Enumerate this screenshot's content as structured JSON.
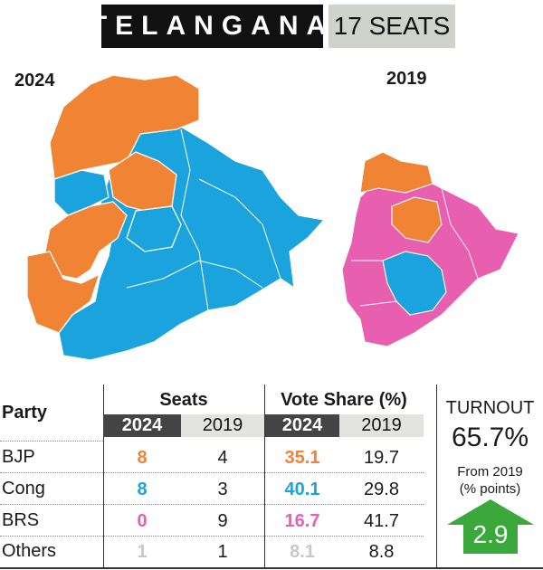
{
  "header": {
    "state": "TELANGANA",
    "seats": "17 SEATS"
  },
  "maps": {
    "left_year": "2024",
    "right_year": "2019"
  },
  "colors": {
    "bjp": "#f08434",
    "cong": "#1ba3dd",
    "brs": "#e95fb0",
    "others": "#c8c8c8",
    "turnout_arrow": "#3aa83a"
  },
  "table": {
    "party_header": "Party",
    "seats_header": "Seats",
    "vote_header": "Vote Share (%)",
    "years": [
      "2024",
      "2019",
      "2024",
      "2019"
    ],
    "rows": [
      {
        "party": "BJP",
        "seats_2024": "8",
        "seats_2019": "4",
        "vote_2024": "35.1",
        "vote_2019": "19.7"
      },
      {
        "party": "Cong",
        "seats_2024": "8",
        "seats_2019": "3",
        "vote_2024": "40.1",
        "vote_2019": "29.8"
      },
      {
        "party": "BRS",
        "seats_2024": "0",
        "seats_2019": "9",
        "vote_2024": "16.7",
        "vote_2019": "41.7"
      },
      {
        "party": "Others",
        "seats_2024": "1",
        "seats_2019": "1",
        "vote_2024": "8.1",
        "vote_2019": "8.8"
      }
    ]
  },
  "turnout": {
    "label": "TURNOUT",
    "value": "65.7%",
    "from_label": "From 2019",
    "unit_label": "(% points)",
    "change": "2.9"
  }
}
